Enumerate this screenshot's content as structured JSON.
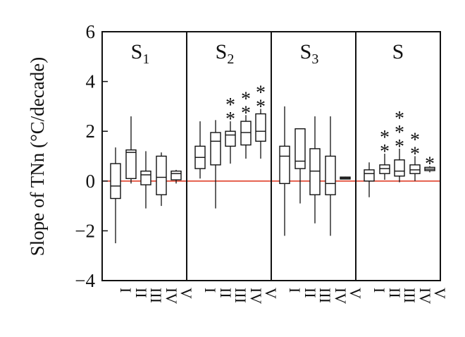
{
  "chart_data": {
    "type": "boxplot",
    "ylabel": "Slope of TNn (°C/decade)",
    "ylim": [
      -4,
      6
    ],
    "yticks": [
      -4,
      -2,
      0,
      2,
      4,
      6
    ],
    "reference_line": {
      "y": 0,
      "color": "#e0402a"
    },
    "categories": [
      "I",
      "II",
      "III",
      "IV",
      "V"
    ],
    "panels": [
      {
        "label": "S",
        "subscript": "1",
        "boxes": [
          {
            "cat": "I",
            "min": -2.5,
            "q1": -0.7,
            "median": -0.2,
            "q3": 0.7,
            "max": 1.35,
            "stars": ""
          },
          {
            "cat": "II",
            "min": -0.1,
            "q1": 0.1,
            "median": 1.15,
            "q3": 1.25,
            "max": 2.6,
            "stars": ""
          },
          {
            "cat": "III",
            "min": -1.1,
            "q1": -0.15,
            "median": 0.25,
            "q3": 0.4,
            "max": 1.2,
            "stars": ""
          },
          {
            "cat": "IV",
            "min": -1.0,
            "q1": -0.55,
            "median": 0.15,
            "q3": 1.0,
            "max": 1.15,
            "stars": ""
          },
          {
            "cat": "V",
            "min": -0.1,
            "q1": 0.05,
            "median": 0.3,
            "q3": 0.4,
            "max": 0.45,
            "stars": ""
          }
        ]
      },
      {
        "label": "S",
        "subscript": "2",
        "boxes": [
          {
            "cat": "I",
            "min": 0.1,
            "q1": 0.5,
            "median": 0.95,
            "q3": 1.4,
            "max": 2.4,
            "stars": ""
          },
          {
            "cat": "II",
            "min": -1.1,
            "q1": 0.65,
            "median": 1.6,
            "q3": 1.95,
            "max": 2.45,
            "stars": ""
          },
          {
            "cat": "III",
            "min": 0.7,
            "q1": 1.4,
            "median": 1.85,
            "q3": 2.0,
            "max": 2.4,
            "stars": "**"
          },
          {
            "cat": "IV",
            "min": 0.9,
            "q1": 1.45,
            "median": 1.95,
            "q3": 2.4,
            "max": 2.65,
            "stars": "**"
          },
          {
            "cat": "V",
            "min": 0.9,
            "q1": 1.6,
            "median": 2.0,
            "q3": 2.7,
            "max": 2.9,
            "stars": "**"
          }
        ]
      },
      {
        "label": "S",
        "subscript": "3",
        "boxes": [
          {
            "cat": "I",
            "min": -2.2,
            "q1": -0.1,
            "median": 1.0,
            "q3": 1.4,
            "max": 3.0,
            "stars": ""
          },
          {
            "cat": "II",
            "min": -0.9,
            "q1": 0.5,
            "median": 0.8,
            "q3": 2.1,
            "max": 2.1,
            "stars": ""
          },
          {
            "cat": "III",
            "min": -1.7,
            "q1": -0.55,
            "median": 0.4,
            "q3": 1.3,
            "max": 2.6,
            "stars": ""
          },
          {
            "cat": "IV",
            "min": -2.2,
            "q1": -0.55,
            "median": -0.1,
            "q3": 1.0,
            "max": 2.6,
            "stars": ""
          },
          {
            "cat": "V",
            "min": 0.07,
            "q1": 0.08,
            "median": 0.12,
            "q3": 0.16,
            "max": 0.18,
            "stars": ""
          }
        ]
      },
      {
        "label": "S",
        "subscript": "",
        "boxes": [
          {
            "cat": "I",
            "min": -0.65,
            "q1": 0.0,
            "median": 0.3,
            "q3": 0.45,
            "max": 0.75,
            "stars": ""
          },
          {
            "cat": "II",
            "min": 0.05,
            "q1": 0.3,
            "median": 0.5,
            "q3": 0.65,
            "max": 1.1,
            "stars": "**"
          },
          {
            "cat": "III",
            "min": -0.05,
            "q1": 0.2,
            "median": 0.4,
            "q3": 0.85,
            "max": 1.3,
            "stars": "***"
          },
          {
            "cat": "IV",
            "min": 0.0,
            "q1": 0.3,
            "median": 0.45,
            "q3": 0.65,
            "max": 1.0,
            "stars": "**"
          },
          {
            "cat": "V",
            "min": 0.35,
            "q1": 0.42,
            "median": 0.48,
            "q3": 0.55,
            "max": 0.6,
            "stars": "*"
          }
        ]
      }
    ]
  }
}
